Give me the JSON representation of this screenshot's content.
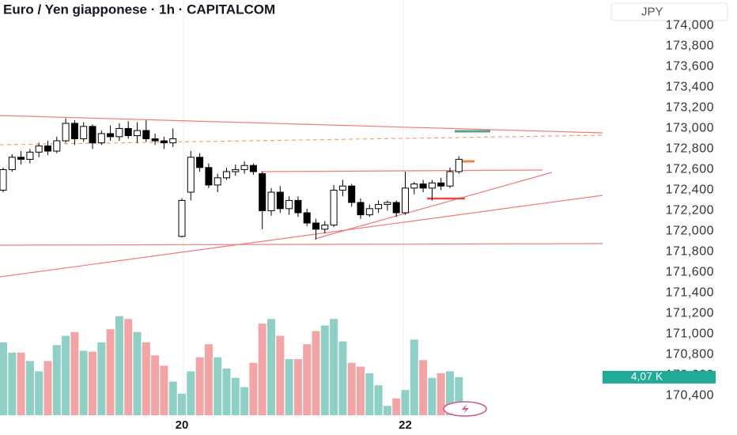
{
  "chart_data": {
    "type": "candlestick",
    "title": "Euro / Yen giapponese · 1h · CAPITALCOM",
    "currency": "JPY",
    "categories": [
      null,
      null,
      null,
      null,
      null,
      null,
      null,
      null,
      null,
      null,
      null,
      null,
      null,
      null,
      null,
      null,
      null,
      null,
      null,
      null,
      "20",
      null,
      null,
      null,
      null,
      null,
      null,
      null,
      null,
      null,
      null,
      null,
      null,
      null,
      null,
      null,
      null,
      null,
      null,
      null,
      null,
      null,
      null,
      null,
      null,
      "22",
      null,
      null,
      null,
      null,
      null,
      null
    ],
    "open": [
      172.4,
      172.6,
      172.72,
      172.7,
      172.77,
      172.83,
      172.78,
      172.88,
      173.05,
      172.9,
      173.02,
      172.86,
      172.95,
      172.92,
      173.0,
      172.93,
      172.98,
      172.9,
      172.88,
      172.86,
      171.95,
      172.38,
      172.72,
      172.62,
      172.45,
      172.52,
      172.58,
      172.6,
      172.64,
      172.56,
      172.2,
      172.38,
      172.22,
      172.3,
      172.18,
      172.08,
      172.02,
      172.06,
      172.4,
      172.44,
      172.28,
      172.16,
      172.22,
      172.26,
      172.28,
      172.18,
      172.42,
      172.46,
      172.42,
      172.47,
      172.44,
      172.58
    ],
    "high": [
      172.62,
      172.75,
      172.78,
      172.8,
      172.86,
      172.88,
      172.92,
      173.1,
      173.08,
      173.06,
      173.04,
      172.98,
      173.03,
      173.05,
      173.07,
      173.06,
      173.08,
      172.95,
      172.92,
      173.0,
      172.32,
      172.78,
      172.76,
      172.66,
      172.56,
      172.62,
      172.65,
      172.68,
      172.66,
      172.58,
      172.42,
      172.44,
      172.34,
      172.34,
      172.22,
      172.12,
      172.1,
      172.45,
      172.5,
      172.46,
      172.32,
      172.26,
      172.3,
      172.3,
      172.3,
      172.58,
      172.48,
      172.5,
      172.5,
      172.52,
      172.62,
      172.73
    ],
    "low": [
      172.38,
      172.58,
      172.65,
      172.66,
      172.72,
      172.74,
      172.76,
      172.86,
      172.84,
      172.87,
      172.8,
      172.84,
      172.88,
      172.88,
      172.9,
      172.86,
      172.87,
      172.84,
      172.8,
      172.82,
      171.94,
      172.3,
      172.58,
      172.42,
      172.38,
      172.5,
      172.54,
      172.56,
      172.55,
      172.02,
      172.15,
      172.18,
      172.16,
      172.14,
      172.05,
      171.92,
      171.98,
      172.04,
      172.34,
      172.24,
      172.12,
      172.14,
      172.18,
      172.2,
      172.14,
      172.16,
      172.36,
      172.38,
      172.3,
      172.4,
      172.42,
      172.56
    ],
    "close": [
      172.6,
      172.72,
      172.7,
      172.77,
      172.83,
      172.78,
      172.88,
      173.05,
      172.9,
      173.02,
      172.86,
      172.95,
      172.92,
      173.0,
      172.93,
      172.98,
      172.9,
      172.88,
      172.86,
      172.9,
      172.3,
      172.72,
      172.62,
      172.45,
      172.52,
      172.58,
      172.6,
      172.64,
      172.58,
      172.2,
      172.38,
      172.22,
      172.3,
      172.18,
      172.08,
      172.02,
      172.06,
      172.4,
      172.44,
      172.28,
      172.16,
      172.22,
      172.26,
      172.28,
      172.18,
      172.42,
      172.46,
      172.42,
      172.47,
      172.44,
      172.58,
      172.7
    ],
    "volume": [
      7.8,
      6.7,
      6.7,
      5.8,
      4.7,
      5.8,
      7.5,
      8.5,
      8.9,
      6.9,
      6.8,
      7.8,
      9.2,
      10.6,
      10.3,
      8.9,
      7.8,
      6.4,
      5.3,
      3.6,
      2.3,
      4.7,
      6.2,
      7.6,
      6.2,
      5.0,
      4.0,
      3.0,
      5.6,
      9.8,
      10.3,
      8.5,
      6.0,
      6.0,
      7.6,
      9.0,
      9.6,
      10.3,
      7.9,
      5.6,
      5.2,
      4.5,
      3.2,
      1.0,
      1.8,
      2.7,
      8.1,
      5.9,
      4.0,
      4.5,
      4.7,
      4.07
    ],
    "volume_tag": {
      "value": 4.07,
      "label": "4,07 K"
    },
    "ylim": [
      170.21,
      174.25
    ],
    "vlim": [
      0,
      11
    ],
    "yticks": [
      {
        "value": 170.4,
        "label": "170,400"
      },
      {
        "value": 170.6,
        "label": "170,600"
      },
      {
        "value": 170.8,
        "label": "170,800"
      },
      {
        "value": 171.0,
        "label": "171,000"
      },
      {
        "value": 171.2,
        "label": "171,200"
      },
      {
        "value": 171.4,
        "label": "171,400"
      },
      {
        "value": 171.6,
        "label": "171,600"
      },
      {
        "value": 171.8,
        "label": "171,800"
      },
      {
        "value": 172.0,
        "label": "172,000"
      },
      {
        "value": 172.2,
        "label": "172,200"
      },
      {
        "value": 172.4,
        "label": "172,400"
      },
      {
        "value": 172.6,
        "label": "172,600"
      },
      {
        "value": 172.8,
        "label": "172,800"
      },
      {
        "value": 173.0,
        "label": "173,000"
      },
      {
        "value": 173.2,
        "label": "173,200"
      },
      {
        "value": 173.4,
        "label": "173,400"
      },
      {
        "value": 173.6,
        "label": "173,600"
      },
      {
        "value": 173.8,
        "label": "173,800"
      },
      {
        "value": 174.0,
        "label": "174,000"
      }
    ],
    "up_color": "#ffffff",
    "down_color": "#000000",
    "volume_up_color": "#8fd0c6",
    "volume_down_color": "#f3a5a5",
    "volume_tag_color": "#22ab94"
  }
}
